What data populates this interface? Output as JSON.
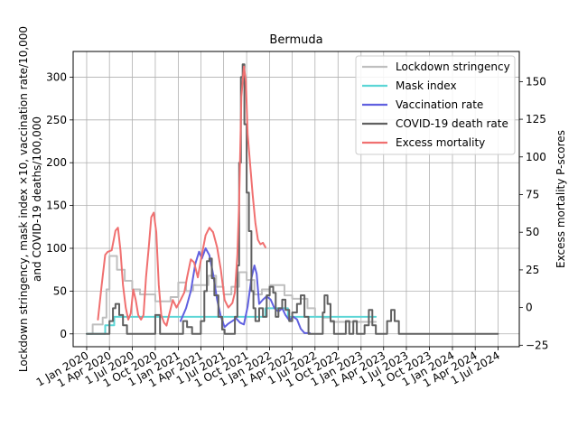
{
  "chart_data": {
    "type": "line",
    "title": "Bermuda",
    "ylabel_left_line1": "Lockdown stringency, mask index ×10, vaccination rate/10,000",
    "ylabel_left_line2": "and COVID-19 deaths/100,000",
    "ylabel_right": "Excess mortality P-scores",
    "ylim_left": [
      -15,
      330
    ],
    "ylim_right": [
      -26,
      170
    ],
    "yticks_left": [
      0,
      50,
      100,
      150,
      200,
      250,
      300
    ],
    "yticks_right": [
      -25,
      0,
      25,
      50,
      75,
      100,
      125,
      150
    ],
    "xlim": [
      "2019-11-08",
      "2024-09-24"
    ],
    "xticks": [
      {
        "date": "2020-01-01",
        "label": "1 Jan 2020"
      },
      {
        "date": "2020-04-01",
        "label": "1 Apr 2020"
      },
      {
        "date": "2020-07-01",
        "label": "1 Jul 2020"
      },
      {
        "date": "2020-10-01",
        "label": "1 Oct 2020"
      },
      {
        "date": "2021-01-01",
        "label": "1 Jan 2021"
      },
      {
        "date": "2021-04-01",
        "label": "1 Apr 2021"
      },
      {
        "date": "2021-07-01",
        "label": "1 Jul 2021"
      },
      {
        "date": "2021-10-01",
        "label": "1 Oct 2021"
      },
      {
        "date": "2022-01-01",
        "label": "1 Jan 2022"
      },
      {
        "date": "2022-04-01",
        "label": "1 Apr 2022"
      },
      {
        "date": "2022-07-01",
        "label": "1 Jul 2022"
      },
      {
        "date": "2022-10-01",
        "label": "1 Oct 2022"
      },
      {
        "date": "2023-01-01",
        "label": "1 Jan 2023"
      },
      {
        "date": "2023-04-01",
        "label": "1 Apr 2023"
      },
      {
        "date": "2023-07-01",
        "label": "1 Jul 2023"
      },
      {
        "date": "2023-10-01",
        "label": "1 Oct 2023"
      },
      {
        "date": "2024-01-01",
        "label": "1 Jan 2024"
      },
      {
        "date": "2024-04-01",
        "label": "1 Apr 2024"
      },
      {
        "date": "2024-07-01",
        "label": "1 Jul 2024"
      }
    ],
    "grid": true,
    "legend_position": "top-right",
    "series": [
      {
        "name": "Lockdown stringency",
        "color": "#bfbfbf",
        "axis": "left",
        "step": true,
        "points": [
          [
            "2020-01-01",
            0
          ],
          [
            "2020-01-25",
            11
          ],
          [
            "2020-03-05",
            19
          ],
          [
            "2020-03-20",
            52
          ],
          [
            "2020-04-01",
            91
          ],
          [
            "2020-05-01",
            75
          ],
          [
            "2020-06-01",
            62
          ],
          [
            "2020-07-01",
            52
          ],
          [
            "2020-08-01",
            46
          ],
          [
            "2020-10-01",
            38
          ],
          [
            "2020-12-01",
            43
          ],
          [
            "2021-01-01",
            60
          ],
          [
            "2021-02-01",
            50
          ],
          [
            "2021-03-01",
            57
          ],
          [
            "2021-05-01",
            68
          ],
          [
            "2021-06-01",
            55
          ],
          [
            "2021-07-01",
            46
          ],
          [
            "2021-08-01",
            55
          ],
          [
            "2021-09-01",
            72
          ],
          [
            "2021-10-01",
            63
          ],
          [
            "2021-11-01",
            46
          ],
          [
            "2021-12-01",
            52
          ],
          [
            "2022-01-01",
            57
          ],
          [
            "2022-03-01",
            45
          ],
          [
            "2022-04-01",
            41
          ],
          [
            "2022-06-01",
            30
          ],
          [
            "2022-07-01",
            20
          ],
          [
            "2022-08-01",
            19
          ],
          [
            "2022-09-01",
            14
          ],
          [
            "2023-03-01",
            14
          ]
        ]
      },
      {
        "name": "Mask index",
        "color": "#5cd6d6",
        "axis": "left",
        "step": true,
        "points": [
          [
            "2020-01-01",
            0
          ],
          [
            "2020-03-15",
            10
          ],
          [
            "2020-04-20",
            20
          ],
          [
            "2021-12-01",
            20
          ],
          [
            "2021-12-15",
            30
          ],
          [
            "2022-03-01",
            30
          ],
          [
            "2022-03-15",
            20
          ],
          [
            "2023-03-01",
            20
          ]
        ]
      },
      {
        "name": "Vaccination rate",
        "color": "#6060e0",
        "axis": "left",
        "step": false,
        "points": [
          [
            "2021-01-10",
            15
          ],
          [
            "2021-02-01",
            30
          ],
          [
            "2021-02-20",
            50
          ],
          [
            "2021-03-10",
            82
          ],
          [
            "2021-03-25",
            96
          ],
          [
            "2021-04-05",
            88
          ],
          [
            "2021-04-20",
            100
          ],
          [
            "2021-05-05",
            92
          ],
          [
            "2021-05-20",
            70
          ],
          [
            "2021-06-05",
            40
          ],
          [
            "2021-06-20",
            20
          ],
          [
            "2021-07-05",
            8
          ],
          [
            "2021-07-20",
            12
          ],
          [
            "2021-08-05",
            15
          ],
          [
            "2021-08-20",
            18
          ],
          [
            "2021-09-05",
            13
          ],
          [
            "2021-09-20",
            11
          ],
          [
            "2021-10-05",
            32
          ],
          [
            "2021-10-20",
            65
          ],
          [
            "2021-11-01",
            80
          ],
          [
            "2021-11-10",
            70
          ],
          [
            "2021-11-20",
            35
          ],
          [
            "2021-12-05",
            40
          ],
          [
            "2021-12-20",
            44
          ],
          [
            "2022-01-05",
            40
          ],
          [
            "2022-01-20",
            30
          ],
          [
            "2022-02-05",
            26
          ],
          [
            "2022-02-20",
            30
          ],
          [
            "2022-03-05",
            22
          ],
          [
            "2022-03-20",
            16
          ],
          [
            "2022-04-05",
            20
          ],
          [
            "2022-04-20",
            17
          ],
          [
            "2022-05-05",
            6
          ],
          [
            "2022-05-20",
            1
          ],
          [
            "2022-06-10",
            1
          ]
        ]
      },
      {
        "name": "COVID-19 death rate",
        "color": "#606060",
        "axis": "left",
        "step": true,
        "points": [
          [
            "2020-01-01",
            0
          ],
          [
            "2020-03-20",
            0
          ],
          [
            "2020-04-01",
            15
          ],
          [
            "2020-04-15",
            30
          ],
          [
            "2020-04-25",
            35
          ],
          [
            "2020-05-10",
            22
          ],
          [
            "2020-05-25",
            10
          ],
          [
            "2020-06-10",
            0
          ],
          [
            "2020-09-15",
            0
          ],
          [
            "2020-10-01",
            22
          ],
          [
            "2020-10-20",
            0
          ],
          [
            "2021-01-01",
            0
          ],
          [
            "2021-01-20",
            15
          ],
          [
            "2021-02-05",
            8
          ],
          [
            "2021-02-25",
            0
          ],
          [
            "2021-03-10",
            0
          ],
          [
            "2021-04-01",
            15
          ],
          [
            "2021-04-15",
            50
          ],
          [
            "2021-04-25",
            85
          ],
          [
            "2021-05-05",
            88
          ],
          [
            "2021-05-15",
            65
          ],
          [
            "2021-05-25",
            45
          ],
          [
            "2021-06-10",
            20
          ],
          [
            "2021-06-25",
            5
          ],
          [
            "2021-07-05",
            0
          ],
          [
            "2021-08-01",
            0
          ],
          [
            "2021-08-15",
            20
          ],
          [
            "2021-08-25",
            80
          ],
          [
            "2021-09-01",
            200
          ],
          [
            "2021-09-08",
            300
          ],
          [
            "2021-09-15",
            315
          ],
          [
            "2021-09-22",
            245
          ],
          [
            "2021-10-01",
            165
          ],
          [
            "2021-10-10",
            120
          ],
          [
            "2021-10-20",
            50
          ],
          [
            "2021-10-28",
            30
          ],
          [
            "2021-11-05",
            15
          ],
          [
            "2021-11-20",
            30
          ],
          [
            "2021-12-05",
            20
          ],
          [
            "2021-12-20",
            45
          ],
          [
            "2022-01-01",
            55
          ],
          [
            "2022-01-15",
            48
          ],
          [
            "2022-01-25",
            20
          ],
          [
            "2022-02-05",
            30
          ],
          [
            "2022-02-20",
            40
          ],
          [
            "2022-03-05",
            28
          ],
          [
            "2022-03-20",
            15
          ],
          [
            "2022-04-01",
            25
          ],
          [
            "2022-04-20",
            35
          ],
          [
            "2022-05-05",
            45
          ],
          [
            "2022-05-20",
            20
          ],
          [
            "2022-06-05",
            0
          ],
          [
            "2022-07-15",
            0
          ],
          [
            "2022-08-01",
            25
          ],
          [
            "2022-08-08",
            45
          ],
          [
            "2022-08-20",
            35
          ],
          [
            "2022-09-01",
            15
          ],
          [
            "2022-09-15",
            0
          ],
          [
            "2022-10-20",
            0
          ],
          [
            "2022-11-01",
            15
          ],
          [
            "2022-11-15",
            0
          ],
          [
            "2022-12-01",
            15
          ],
          [
            "2022-12-15",
            0
          ],
          [
            "2023-01-01",
            0
          ],
          [
            "2023-01-15",
            10
          ],
          [
            "2023-02-01",
            28
          ],
          [
            "2023-02-15",
            10
          ],
          [
            "2023-03-01",
            0
          ],
          [
            "2023-04-01",
            0
          ],
          [
            "2023-04-15",
            15
          ],
          [
            "2023-05-01",
            28
          ],
          [
            "2023-05-15",
            15
          ],
          [
            "2023-06-01",
            0
          ],
          [
            "2024-07-01",
            0
          ]
        ]
      },
      {
        "name": "Excess mortality",
        "color": "#f07070",
        "axis": "right",
        "step": false,
        "points": [
          [
            "2020-02-15",
            -8
          ],
          [
            "2020-03-01",
            15
          ],
          [
            "2020-03-15",
            35
          ],
          [
            "2020-03-25",
            37
          ],
          [
            "2020-04-10",
            38
          ],
          [
            "2020-04-25",
            51
          ],
          [
            "2020-05-05",
            53
          ],
          [
            "2020-05-15",
            38
          ],
          [
            "2020-05-25",
            15
          ],
          [
            "2020-06-05",
            0
          ],
          [
            "2020-06-15",
            -8
          ],
          [
            "2020-06-25",
            -4
          ],
          [
            "2020-07-05",
            12
          ],
          [
            "2020-07-15",
            5
          ],
          [
            "2020-07-25",
            -5
          ],
          [
            "2020-08-05",
            -8
          ],
          [
            "2020-08-15",
            -5
          ],
          [
            "2020-08-25",
            20
          ],
          [
            "2020-09-05",
            40
          ],
          [
            "2020-09-15",
            60
          ],
          [
            "2020-09-25",
            63
          ],
          [
            "2020-10-05",
            50
          ],
          [
            "2020-10-15",
            15
          ],
          [
            "2020-10-25",
            -5
          ],
          [
            "2020-11-05",
            -10
          ],
          [
            "2020-11-15",
            -12
          ],
          [
            "2020-11-25",
            -5
          ],
          [
            "2020-12-10",
            5
          ],
          [
            "2020-12-25",
            0
          ],
          [
            "2021-01-10",
            5
          ],
          [
            "2021-01-25",
            10
          ],
          [
            "2021-02-05",
            20
          ],
          [
            "2021-02-20",
            32
          ],
          [
            "2021-03-05",
            30
          ],
          [
            "2021-03-20",
            20
          ],
          [
            "2021-04-05",
            35
          ],
          [
            "2021-04-20",
            48
          ],
          [
            "2021-05-05",
            53
          ],
          [
            "2021-05-20",
            50
          ],
          [
            "2021-06-05",
            40
          ],
          [
            "2021-06-20",
            25
          ],
          [
            "2021-07-05",
            5
          ],
          [
            "2021-07-20",
            0
          ],
          [
            "2021-08-05",
            3
          ],
          [
            "2021-08-15",
            10
          ],
          [
            "2021-08-25",
            35
          ],
          [
            "2021-09-01",
            70
          ],
          [
            "2021-09-10",
            140
          ],
          [
            "2021-09-20",
            160
          ],
          [
            "2021-09-28",
            150
          ],
          [
            "2021-10-05",
            115
          ],
          [
            "2021-10-15",
            95
          ],
          [
            "2021-10-25",
            75
          ],
          [
            "2021-11-05",
            56
          ],
          [
            "2021-11-15",
            45
          ],
          [
            "2021-11-25",
            42
          ],
          [
            "2021-12-05",
            43
          ],
          [
            "2021-12-15",
            40
          ]
        ]
      }
    ]
  }
}
